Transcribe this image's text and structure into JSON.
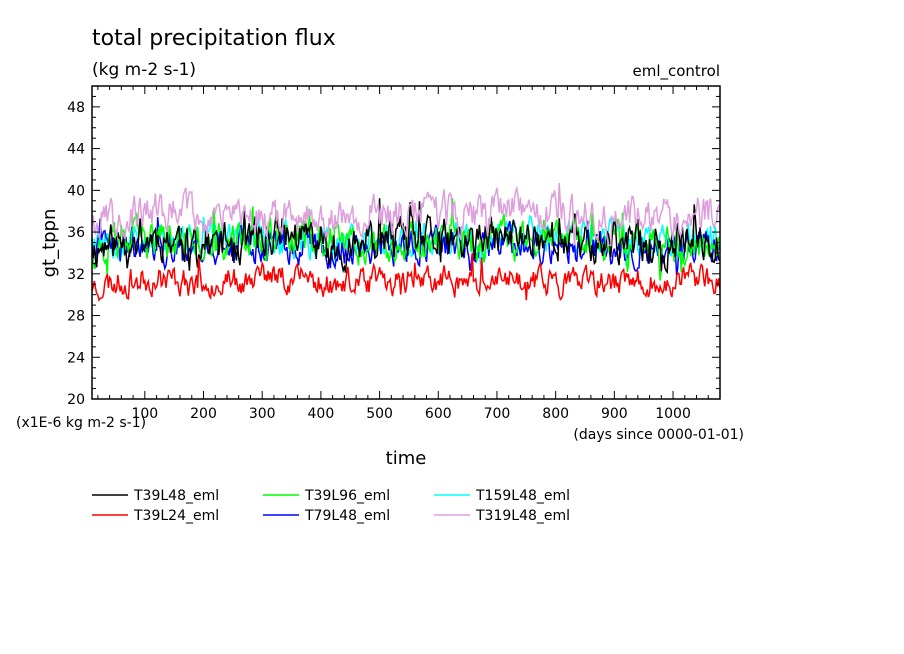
{
  "chart_data": {
    "type": "line",
    "title": "total precipitation flux",
    "units": "(kg m-2 s-1)",
    "experiment": "eml_control",
    "ylabel": "gt_tppn",
    "xlabel": "time",
    "x_units": "(days since 0000-01-01)",
    "y_multiplier": "(x1E-6 kg m-2 s-1)",
    "xlim": [
      10,
      1080
    ],
    "ylim": [
      20,
      50
    ],
    "x_ticks": [
      100,
      200,
      300,
      400,
      500,
      600,
      700,
      800,
      900,
      1000
    ],
    "y_ticks": [
      20,
      24,
      28,
      32,
      36,
      40,
      44,
      48
    ],
    "x_tick_labels": [
      "100",
      "200",
      "300",
      "400",
      "500",
      "600",
      "700",
      "800",
      "900",
      "1000"
    ],
    "y_tick_labels": [
      "20",
      "24",
      "28",
      "32",
      "36",
      "40",
      "44",
      "48"
    ],
    "legend_placement": "below",
    "series": [
      {
        "name": "T39L48_eml",
        "color": "#000000",
        "mean": 35.0,
        "amplitude": 1.6,
        "seed": 11,
        "values": [
          34.5,
          35.6,
          34.8,
          35.9,
          34.6,
          35.4,
          34.9,
          35.8,
          35.1,
          34.7,
          35.5
        ]
      },
      {
        "name": "T39L24_eml",
        "color": "#ff0000",
        "mean": 31.3,
        "amplitude": 1.1,
        "seed": 23,
        "values": [
          30.9,
          31.6,
          31.2,
          31.8,
          31.0,
          31.5,
          31.2,
          31.4,
          30.9,
          31.3,
          31.5
        ]
      },
      {
        "name": "T39L96_eml",
        "color": "#00ff00",
        "mean": 35.0,
        "amplitude": 1.5,
        "seed": 37,
        "values": [
          34.6,
          35.3,
          35.0,
          35.5,
          34.8,
          35.2,
          34.9,
          35.4,
          35.0,
          34.7,
          35.3
        ]
      },
      {
        "name": "T79L48_eml",
        "color": "#0000ff",
        "mean": 34.4,
        "amplitude": 1.3,
        "seed": 41,
        "values": [
          34.2,
          34.6,
          34.3,
          34.9,
          34.1,
          34.5,
          34.4,
          34.7,
          34.3,
          34.2,
          34.6
        ]
      },
      {
        "name": "T159L48_eml",
        "color": "#00ffff",
        "mean": 35.4,
        "amplitude": 1.3,
        "seed": 53,
        "values": [
          35.6,
          35.2,
          35.3,
          35.5,
          35.1,
          35.6,
          35.4,
          35.7,
          35.3,
          35.2,
          35.4
        ]
      },
      {
        "name": "T319L48_eml",
        "color": "#dda0dd",
        "mean": 37.6,
        "amplitude": 1.5,
        "seed": 67,
        "values": [
          37.4,
          37.9,
          37.3,
          37.8,
          37.5,
          37.7,
          37.6,
          37.9,
          37.4,
          37.6,
          37.8
        ]
      }
    ]
  }
}
